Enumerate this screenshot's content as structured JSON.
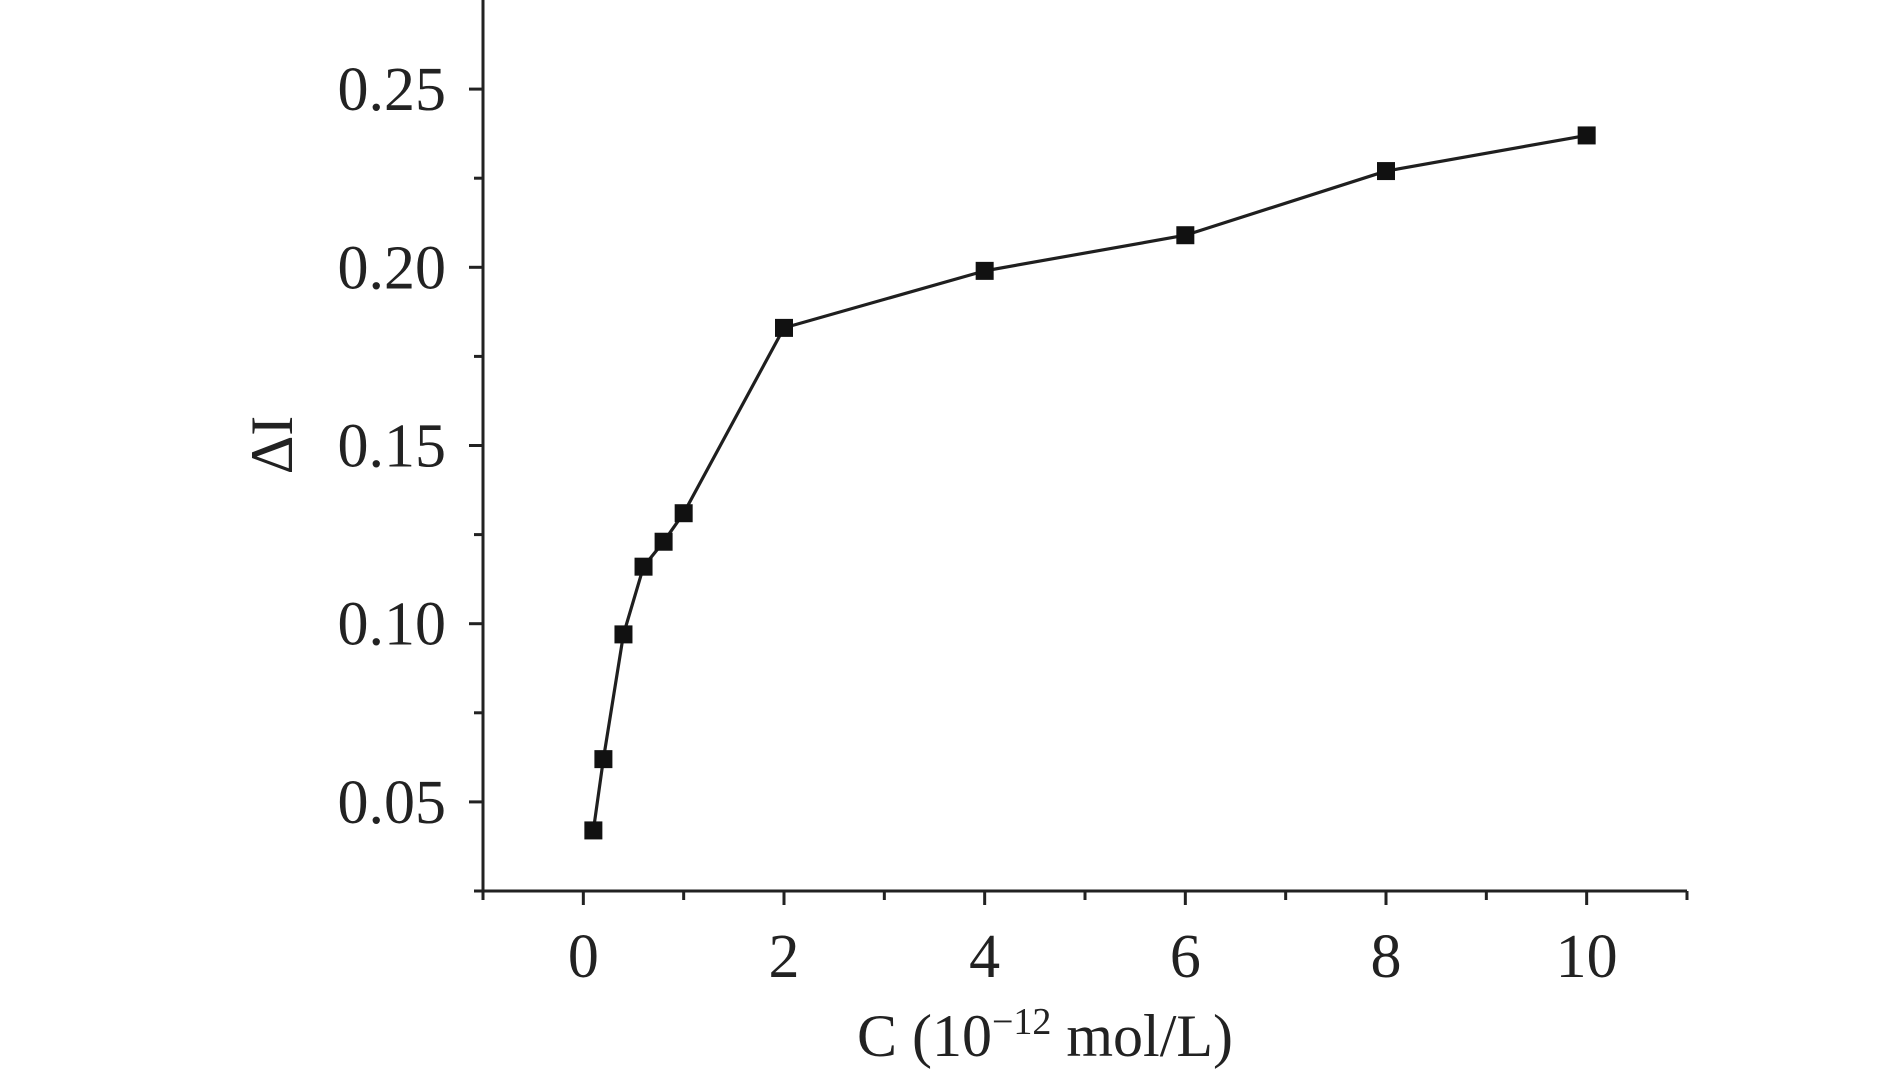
{
  "chart_data": {
    "type": "line",
    "title": "",
    "xlabel": {
      "prefix": "C (10",
      "superscript": "−12",
      "suffix": " mol/L)"
    },
    "ylabel": "ΔI",
    "xlim": [
      -1,
      11
    ],
    "ylim": [
      0.025,
      0.275
    ],
    "x_ticks": [
      0,
      2,
      4,
      6,
      8,
      10
    ],
    "x_tick_labels": [
      "0",
      "2",
      "4",
      "6",
      "8",
      "10"
    ],
    "x_minor_ticks": [
      -1,
      1,
      3,
      5,
      7,
      9,
      11
    ],
    "y_ticks": [
      0.05,
      0.1,
      0.15,
      0.2,
      0.25
    ],
    "y_tick_labels": [
      "0.05",
      "0.10",
      "0.15",
      "0.20",
      "0.25"
    ],
    "y_minor_ticks": [
      0.025,
      0.075,
      0.125,
      0.175,
      0.225
    ],
    "grid": false,
    "legend": "none",
    "marker": "square",
    "color": "#111111",
    "series": [
      {
        "x": [
          0.1,
          0.2,
          0.4,
          0.6,
          0.8,
          1.0,
          2.0,
          4.0,
          6.0,
          8.0,
          10.0
        ],
        "y": [
          0.042,
          0.062,
          0.097,
          0.116,
          0.123,
          0.131,
          0.183,
          0.199,
          0.209,
          0.227,
          0.237
        ]
      }
    ]
  }
}
